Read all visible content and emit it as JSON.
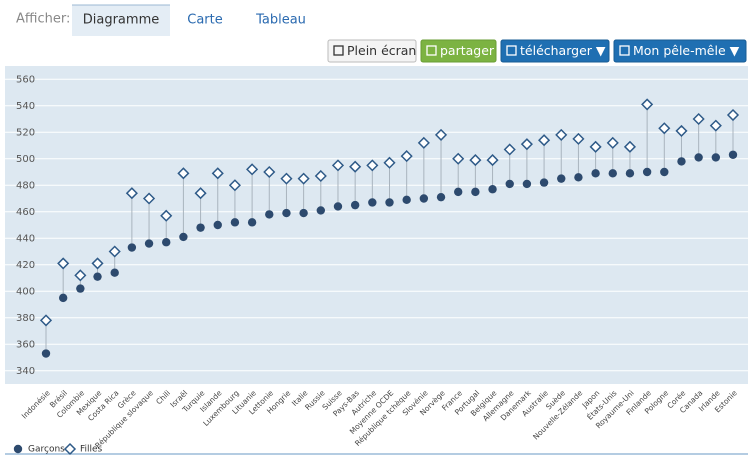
{
  "ui": {
    "show_label": "Afficher:",
    "tabs": [
      "Diagramme",
      "Carte",
      "Tableau"
    ],
    "active_tab": 0,
    "buttons": [
      "Plein écran",
      "partager",
      "télécharger ▼",
      "Mon pêle-mêle ▼"
    ]
  },
  "chart_data": {
    "type": "dumbbell",
    "categories": [
      "Indonésie",
      "Brésil",
      "Colombie",
      "Mexique",
      "Costa Rica",
      "Grèce",
      "République slovaque",
      "Chili",
      "Israël",
      "Turquie",
      "Islande",
      "Luxembourg",
      "Lituanie",
      "Lettonie",
      "Hongrie",
      "Italie",
      "Russie",
      "Suisse",
      "Pays-Bas",
      "Autriche",
      "Moyenne OCDE",
      "République tchèque",
      "Slovénie",
      "Norvège",
      "France",
      "Portugal",
      "Belgique",
      "Allemagne",
      "Danemark",
      "Australie",
      "Suède",
      "Nouvelle-Zélande",
      "Japon",
      "États-Unis",
      "Royaume-Uni",
      "Finlande",
      "Pologne",
      "Corée",
      "Canada",
      "Irlande",
      "Estonie"
    ],
    "series": [
      {
        "name": "Garçons",
        "color": "#2d4a6e",
        "marker": "circle",
        "values": [
          353,
          395,
          402,
          411,
          414,
          433,
          436,
          437,
          441,
          448,
          450,
          452,
          452,
          458,
          459,
          459,
          461,
          464,
          465,
          467,
          467,
          469,
          470,
          471,
          475,
          475,
          477,
          481,
          481,
          482,
          485,
          486,
          489,
          489,
          489,
          490,
          490,
          498,
          501,
          501,
          503
        ]
      },
      {
        "name": "Filles",
        "color": "#2e5a88",
        "marker": "diamond",
        "values": [
          378,
          421,
          412,
          421,
          430,
          474,
          470,
          457,
          489,
          474,
          489,
          480,
          492,
          490,
          485,
          485,
          487,
          495,
          494,
          495,
          497,
          502,
          512,
          518,
          500,
          499,
          499,
          507,
          511,
          514,
          518,
          515,
          509,
          512,
          509,
          541,
          523,
          521,
          530,
          525,
          533
        ]
      }
    ],
    "ylim": [
      330,
      570
    ],
    "yticks": [
      340,
      360,
      380,
      400,
      420,
      440,
      460,
      480,
      500,
      520,
      540,
      560
    ],
    "grid": true
  }
}
